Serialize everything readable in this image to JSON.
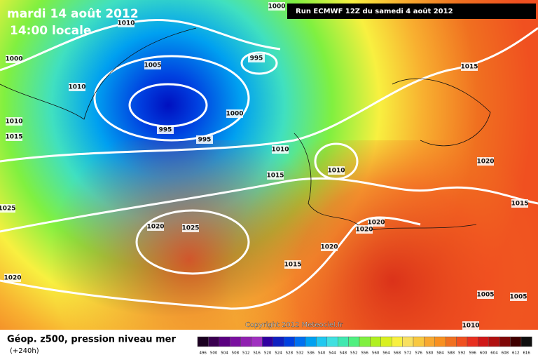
{
  "header": {
    "date": "mardi 14 août 2012",
    "time": "14:00 locale",
    "run": "Run ECMWF 12Z du samedi 4 août 2012"
  },
  "isobar_labels": [
    "1000",
    "1010",
    "1000",
    "995",
    "1005",
    "1010",
    "1015",
    "1000",
    "1010",
    "995",
    "1015",
    "995",
    "1010",
    "1010",
    "1020",
    "1015",
    "1025",
    "1015",
    "1020",
    "1025",
    "1020",
    "1020",
    "1020",
    "1015",
    "1020",
    "1005",
    "1005",
    "1010"
  ],
  "copyright": "Copyright 2012 Meteociel.fr",
  "footer": {
    "title": "Géop. z500, pression niveau mer",
    "lead": "(+240h)"
  },
  "legend": {
    "labels": [
      "496",
      "500",
      "504",
      "508",
      "512",
      "516",
      "520",
      "524",
      "528",
      "532",
      "536",
      "540",
      "544",
      "548",
      "552",
      "556",
      "560",
      "564",
      "568",
      "572",
      "576",
      "580",
      "584",
      "588",
      "592",
      "596",
      "600",
      "604",
      "608",
      "612",
      "616"
    ],
    "colors": [
      "#1a0020",
      "#3a0050",
      "#5a0080",
      "#7a10a0",
      "#9020b0",
      "#a030c0",
      "#3000a0",
      "#1020c0",
      "#0040e0",
      "#0070f0",
      "#00a0f0",
      "#20c8f0",
      "#40e0e0",
      "#40e8b0",
      "#50f080",
      "#80f040",
      "#b0f020",
      "#d8f020",
      "#f8f040",
      "#f8e060",
      "#f8c840",
      "#f8a830",
      "#f89020",
      "#f07020",
      "#f05020",
      "#e83020",
      "#d01818",
      "#b01010",
      "#800808",
      "#400000",
      "#101010"
    ]
  }
}
